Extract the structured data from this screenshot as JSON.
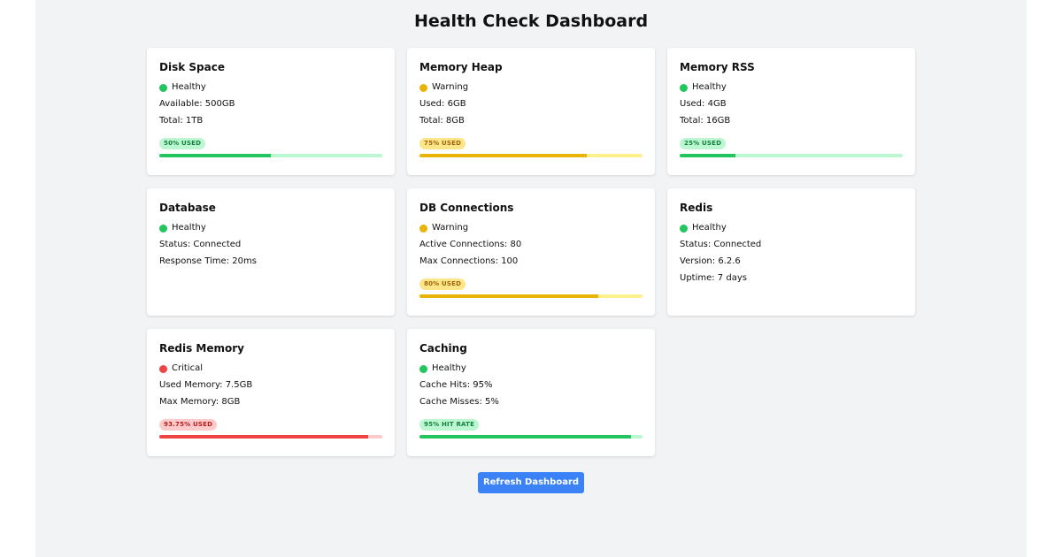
{
  "title": "Health Check Dashboard",
  "colors": {
    "healthy": "#22c55e",
    "warning": "#eab308",
    "critical": "#ef4444",
    "healthy_track": "#bbf7d0",
    "warning_track": "#fef08a",
    "critical_track": "#fecaca",
    "button": "#3b82f6"
  },
  "cards": [
    {
      "title": "Disk Space",
      "status": "Healthy",
      "level": "healthy",
      "lines": [
        "Available: 500GB",
        "Total: 1TB"
      ],
      "badge": "50% USED",
      "fraction": 0.5
    },
    {
      "title": "Memory Heap",
      "status": "Warning",
      "level": "warning",
      "lines": [
        "Used: 6GB",
        "Total: 8GB"
      ],
      "badge": "75% USED",
      "fraction": 0.75
    },
    {
      "title": "Memory RSS",
      "status": "Healthy",
      "level": "healthy",
      "lines": [
        "Used: 4GB",
        "Total: 16GB"
      ],
      "badge": "25% USED",
      "fraction": 0.25
    },
    {
      "title": "Database",
      "status": "Healthy",
      "level": "healthy",
      "lines": [
        "Status: Connected",
        "Response Time: 20ms"
      ]
    },
    {
      "title": "DB Connections",
      "status": "Warning",
      "level": "warning",
      "lines": [
        "Active Connections: 80",
        "Max Connections: 100"
      ],
      "badge": "80% USED",
      "fraction": 0.8
    },
    {
      "title": "Redis",
      "status": "Healthy",
      "level": "healthy",
      "lines": [
        "Status: Connected",
        "Version: 6.2.6",
        "Uptime: 7 days"
      ]
    },
    {
      "title": "Redis Memory",
      "status": "Critical",
      "level": "critical",
      "lines": [
        "Used Memory: 7.5GB",
        "Max Memory: 8GB"
      ],
      "badge": "93.75% USED",
      "fraction": 0.9375
    },
    {
      "title": "Caching",
      "status": "Healthy",
      "level": "healthy",
      "lines": [
        "Cache Hits: 95%",
        "Cache Misses: 5%"
      ],
      "badge": "95% HIT RATE",
      "fraction": 0.95
    }
  ],
  "refresh_label": "Refresh Dashboard"
}
